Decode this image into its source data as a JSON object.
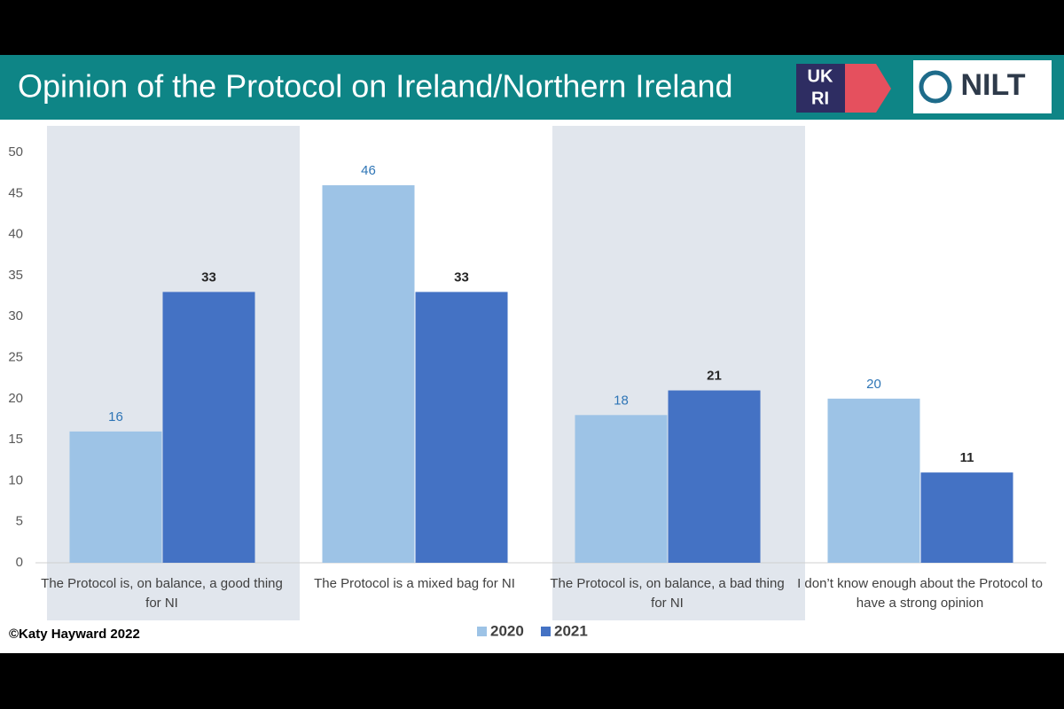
{
  "header": {
    "title": "Opinion of the Protocol on Ireland/Northern Ireland",
    "logos": [
      "UK",
      "RI",
      "NILT"
    ]
  },
  "footer": "©Katy Hayward 2022",
  "chart_data": {
    "type": "bar",
    "categories": [
      "The Protocol is, on balance, a good thing for NI",
      "The Protocol is a mixed bag for NI",
      "The Protocol is, on balance, a bad thing for NI",
      "I don’t know enough about the Protocol to have a strong opinion"
    ],
    "series": [
      {
        "name": "2020",
        "color": "#9dc3e6",
        "values": [
          16,
          46,
          18,
          20
        ]
      },
      {
        "name": "2021",
        "color": "#4472c4",
        "values": [
          33,
          33,
          21,
          11
        ]
      }
    ],
    "ylim": [
      0,
      50
    ],
    "yticks": [
      0,
      5,
      10,
      15,
      20,
      25,
      30,
      35,
      40,
      45,
      50
    ],
    "grid": false,
    "legend": "bottom"
  }
}
